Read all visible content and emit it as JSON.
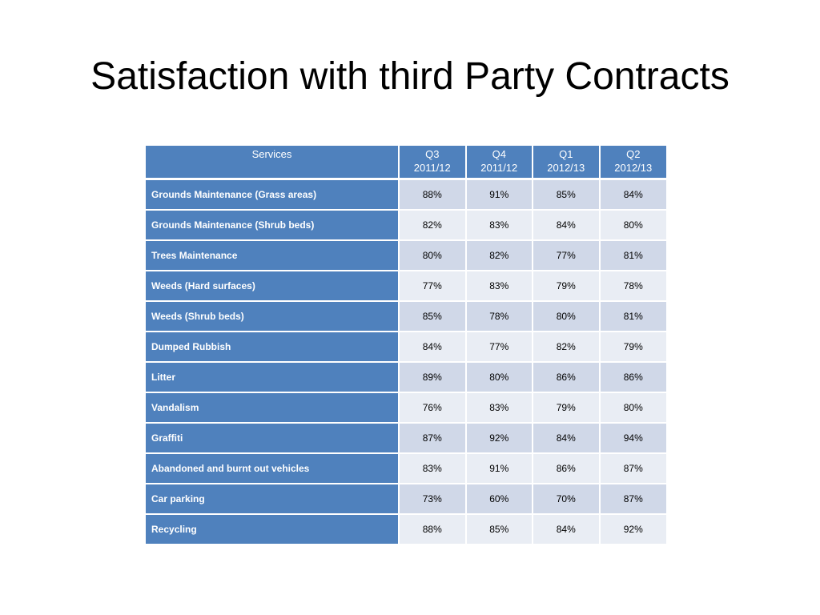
{
  "title": "Satisfaction with third Party Contracts",
  "table": {
    "header": {
      "services": "Services",
      "quarters": [
        {
          "q": "Q3",
          "year": "2011/12"
        },
        {
          "q": "Q4",
          "year": "2011/12"
        },
        {
          "q": "Q1",
          "year": "2012/13"
        },
        {
          "q": "Q2",
          "year": "2012/13"
        }
      ]
    },
    "rows": [
      {
        "service": "Grounds Maintenance (Grass areas)",
        "values": [
          "88%",
          "91%",
          "85%",
          "84%"
        ]
      },
      {
        "service": "Grounds Maintenance (Shrub beds)",
        "values": [
          "82%",
          "83%",
          "84%",
          "80%"
        ]
      },
      {
        "service": "Trees Maintenance",
        "values": [
          "80%",
          "82%",
          "77%",
          "81%"
        ]
      },
      {
        "service": "Weeds (Hard surfaces)",
        "values": [
          "77%",
          "83%",
          "79%",
          "78%"
        ]
      },
      {
        "service": "Weeds (Shrub beds)",
        "values": [
          "85%",
          "78%",
          "80%",
          "81%"
        ]
      },
      {
        "service": "Dumped Rubbish",
        "values": [
          "84%",
          "77%",
          "82%",
          "79%"
        ]
      },
      {
        "service": "Litter",
        "values": [
          "89%",
          "80%",
          "86%",
          "86%"
        ]
      },
      {
        "service": "Vandalism",
        "values": [
          "76%",
          "83%",
          "79%",
          "80%"
        ]
      },
      {
        "service": "Graffiti",
        "values": [
          "87%",
          "92%",
          "84%",
          "94%"
        ]
      },
      {
        "service": "Abandoned and burnt out vehicles",
        "values": [
          "83%",
          "91%",
          "86%",
          "87%"
        ]
      },
      {
        "service": "Car parking",
        "values": [
          "73%",
          "60%",
          "70%",
          "87%"
        ]
      },
      {
        "service": "Recycling",
        "values": [
          "88%",
          "85%",
          "84%",
          "92%"
        ]
      }
    ]
  },
  "colors": {
    "header_blue": "#4f81bd",
    "row_light": "#d0d8e8",
    "row_lighter": "#e9edf4"
  }
}
